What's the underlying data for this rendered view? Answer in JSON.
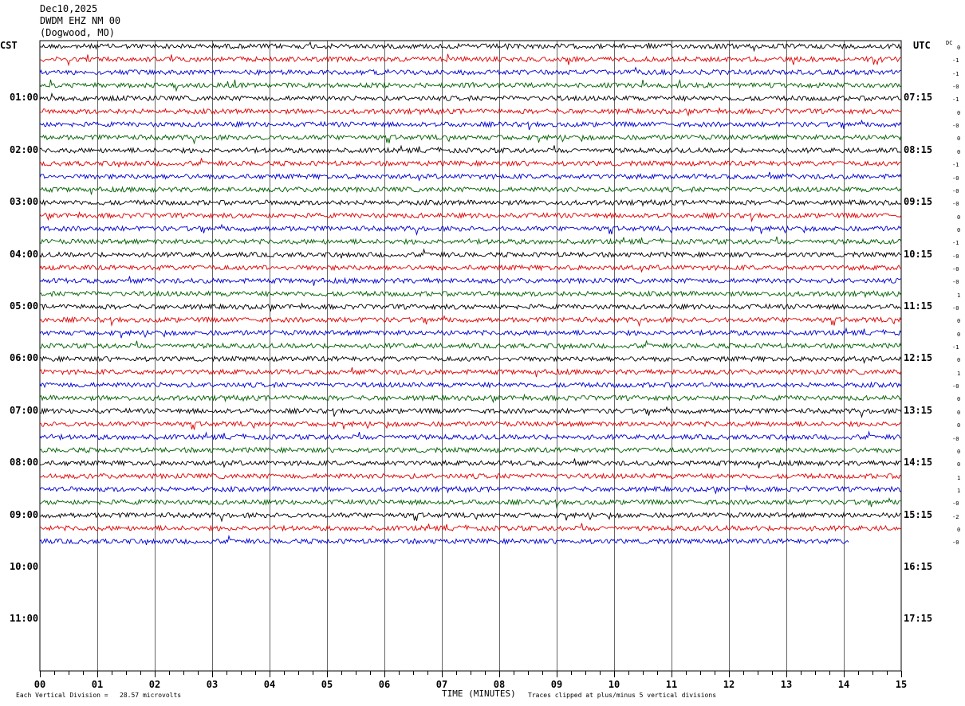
{
  "header": {
    "date": "Dec10,2025",
    "station": "DWDM EHZ NM 00",
    "location": "(Dogwood, MO)"
  },
  "labels": {
    "left_tz": "CST",
    "right_tz": "UTC",
    "dc_header": "DC"
  },
  "footer": {
    "vertical_division": "Each Vertical Division =   28.57 microvolts",
    "xlabel": "TIME (MINUTES)",
    "clip_note": "Traces clipped at plus/minus 5 vertical divisions"
  },
  "chart_data": {
    "type": "line",
    "xlabel": "TIME (MINUTES)",
    "x_ticks": [
      "00",
      "01",
      "02",
      "03",
      "04",
      "05",
      "06",
      "07",
      "08",
      "09",
      "10",
      "11",
      "12",
      "13",
      "14",
      "15"
    ],
    "xlim": [
      0,
      15
    ],
    "left_time_labels": [
      "01:00",
      "02:00",
      "03:00",
      "04:00",
      "05:00",
      "06:00",
      "07:00",
      "08:00",
      "09:00",
      "10:00",
      "11:00"
    ],
    "right_time_labels": [
      "07:15",
      "08:15",
      "09:15",
      "10:15",
      "11:15",
      "12:15",
      "13:15",
      "14:15",
      "15:15",
      "16:15",
      "17:15"
    ],
    "trace_colors": [
      "#000000",
      "#e00000",
      "#0000d0",
      "#006000"
    ],
    "trace_count": 39,
    "last_trace_end_minute": 14.1,
    "dc_offsets": [
      "0",
      "-1",
      "-1",
      "-0",
      "-1",
      "0",
      "-0",
      "0",
      "0",
      "-1",
      "-0",
      "-0",
      "-0",
      "0",
      "0",
      "-1",
      "-0",
      "-0",
      "-0",
      "1",
      "-0",
      "0",
      "0",
      "-1",
      "0",
      "1",
      "-0",
      "0",
      "0",
      "0",
      "-0",
      "0",
      "0",
      "1",
      "1",
      "-0",
      "-2",
      "0",
      "-0"
    ],
    "clip_divisions": 5,
    "microvolts_per_division": 28.57
  }
}
